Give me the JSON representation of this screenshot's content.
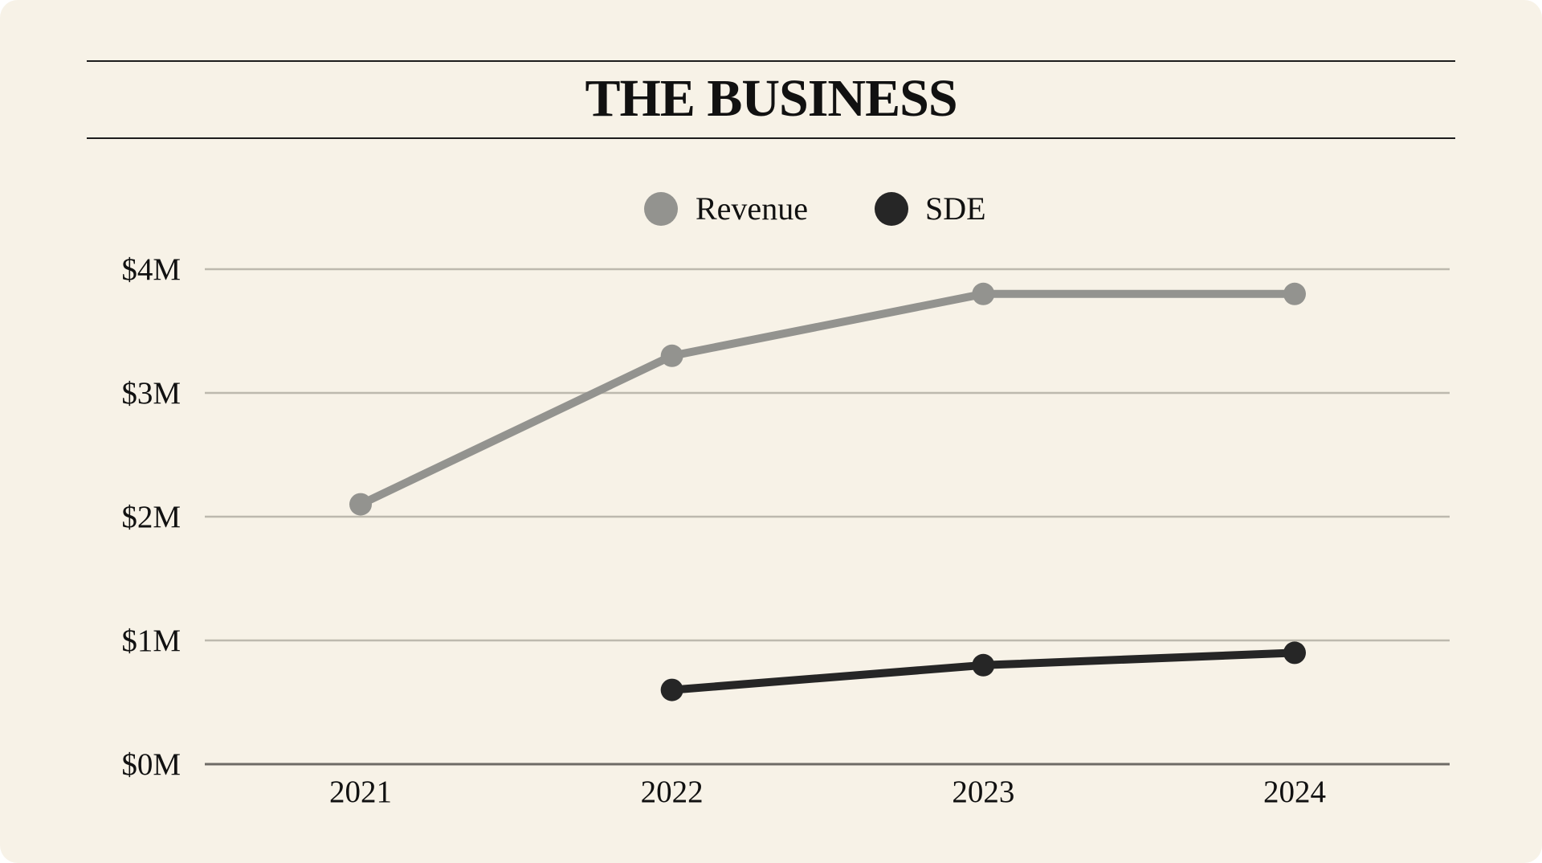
{
  "title": "THE BUSINESS",
  "colors": {
    "background": "#f7f2e7",
    "revenue": "#93938f",
    "sde": "#262626",
    "grid": "#bdb9ae",
    "axis": "#6e6b66",
    "text": "#111111"
  },
  "chart_data": {
    "type": "line",
    "title": "THE BUSINESS",
    "categories": [
      "2021",
      "2022",
      "2023",
      "2024"
    ],
    "series": [
      {
        "name": "Revenue",
        "values": [
          2.1,
          3.3,
          3.8,
          3.8
        ]
      },
      {
        "name": "SDE",
        "values": [
          null,
          0.6,
          0.8,
          0.9
        ]
      }
    ],
    "ylim": [
      0,
      4
    ],
    "yticks": [
      0,
      1,
      2,
      3,
      4
    ],
    "ytick_labels": [
      "$0M",
      "$1M",
      "$2M",
      "$3M",
      "$4M"
    ],
    "grid": true,
    "legend_position": "top-center",
    "xlabel": "",
    "ylabel": ""
  }
}
